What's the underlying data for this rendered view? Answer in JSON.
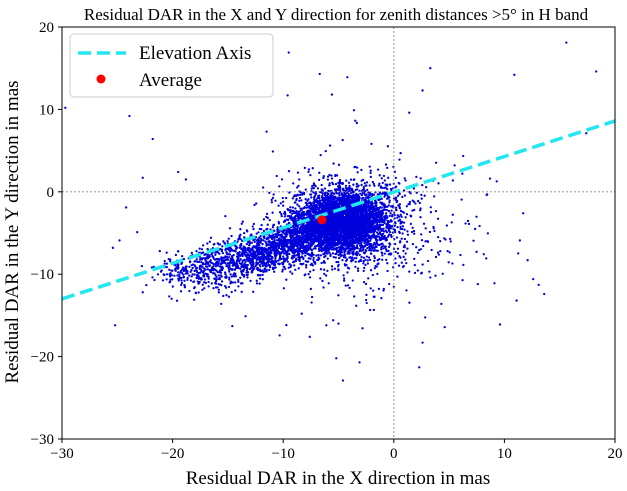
{
  "chart_data": {
    "type": "scatter",
    "title": "Residual DAR in the X and Y direction for zenith distances >5° in H band",
    "xlabel": "Residual DAR in the X direction in mas",
    "ylabel": "Residual DAR in the Y direction in mas",
    "xlim": [
      -30,
      20
    ],
    "ylim": [
      -30,
      20
    ],
    "xticks": [
      "−30",
      "−20",
      "−10",
      "0",
      "10",
      "20"
    ],
    "yticks": [
      "−30",
      "−20",
      "−10",
      "0",
      "10",
      "20"
    ],
    "grid": false,
    "reference_lines": [
      {
        "axis": "x",
        "value": 0,
        "style": "dotted"
      },
      {
        "axis": "y",
        "value": 0,
        "style": "dotted"
      }
    ],
    "legend": {
      "placement": "top-left",
      "entries": [
        "Elevation Axis",
        "Average"
      ]
    },
    "series": [
      {
        "name": "Elevation Axis",
        "kind": "line",
        "style": "dashed",
        "color": "#22e6f0",
        "points": [
          [
            -30,
            -13.0
          ],
          [
            20,
            8.6
          ]
        ]
      },
      {
        "name": "Average",
        "kind": "point",
        "color": "#ff0000",
        "points": [
          [
            -6.5,
            -3.4
          ]
        ]
      },
      {
        "name": "",
        "kind": "scatter",
        "color": "#0000dd",
        "cluster_center": [
          -6.3,
          -3.6
        ],
        "outlier_points": [
          [
            -29.7,
            10.2
          ],
          [
            -23.9,
            9.2
          ],
          [
            -22.7,
            1.7
          ],
          [
            -21.8,
            6.4
          ],
          [
            -19.5,
            2.4
          ],
          [
            -18.8,
            1.5
          ],
          [
            -24.2,
            -1.9
          ],
          [
            -23.2,
            -4.9
          ],
          [
            -24.8,
            -5.9
          ],
          [
            -25.4,
            -6.8
          ],
          [
            -25.2,
            -16.2
          ],
          [
            -22.7,
            -12.2
          ],
          [
            -15.6,
            -13.6
          ],
          [
            -14.6,
            -16.3
          ],
          [
            -13.4,
            -15.1
          ],
          [
            -11.5,
            7.3
          ],
          [
            -9.6,
            11.7
          ],
          [
            -9.5,
            16.9
          ],
          [
            -6.7,
            14.3
          ],
          [
            -5.6,
            11.8
          ],
          [
            -4.2,
            13.9
          ],
          [
            -3.6,
            9.9
          ],
          [
            -4.6,
            -22.9
          ],
          [
            -7.6,
            -17.6
          ],
          [
            -6.1,
            -16.2
          ],
          [
            -0.9,
            -11.8
          ],
          [
            -2.1,
            2.3
          ],
          [
            -0.6,
            2.9
          ],
          [
            1.4,
            9.6
          ],
          [
            2.6,
            12.3
          ],
          [
            3.3,
            15.0
          ],
          [
            5.5,
            3.2
          ],
          [
            6.2,
            2.2
          ],
          [
            6.8,
            -3.9
          ],
          [
            8.7,
            1.6
          ],
          [
            10.9,
            14.2
          ],
          [
            15.6,
            18.1
          ],
          [
            18.3,
            14.6
          ],
          [
            17.4,
            7.1
          ],
          [
            11.7,
            -2.6
          ],
          [
            11.4,
            -5.9
          ],
          [
            12.1,
            -8.3
          ],
          [
            12.6,
            -10.6
          ],
          [
            13.1,
            -11.3
          ],
          [
            13.6,
            -12.4
          ],
          [
            11.1,
            -13.2
          ],
          [
            9.6,
            -16.1
          ],
          [
            9.1,
            -11.1
          ],
          [
            7.6,
            -11.2
          ],
          [
            4.3,
            -13.6
          ],
          [
            2.3,
            -21.3
          ],
          [
            2.6,
            -18.3
          ],
          [
            5.3,
            -8.7
          ],
          [
            3.1,
            -8.4
          ],
          [
            4.2,
            -7.2
          ],
          [
            1.9,
            -8.9
          ],
          [
            3.3,
            -10.4
          ],
          [
            -3.1,
            -20.7
          ],
          [
            -5.2,
            -20.2
          ]
        ]
      }
    ]
  }
}
